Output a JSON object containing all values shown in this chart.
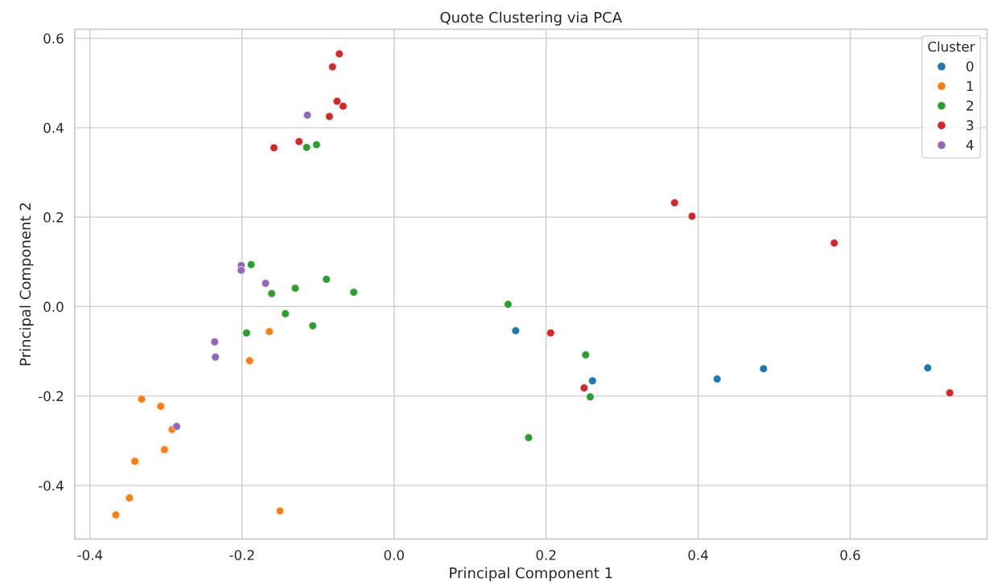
{
  "chart_data": {
    "type": "scatter",
    "title": "Quote Clustering via PCA",
    "xlabel": "Principal Component 1",
    "ylabel": "Principal Component 2",
    "legend_title": "Cluster",
    "legend": "top right",
    "grid": true,
    "marker": "circle",
    "xlim": [
      -0.42,
      0.78
    ],
    "ylim": [
      -0.52,
      0.62
    ],
    "xticks": [
      -0.4,
      -0.2,
      {
        "value": 0,
        "label": "0.0"
      },
      0.2,
      0.4,
      0.6
    ],
    "yticks": [
      -0.4,
      -0.2,
      {
        "value": 0,
        "label": "0.0"
      },
      0.2,
      0.4,
      0.6
    ],
    "series": [
      {
        "name": "0",
        "color": "#1f77b4",
        "x": [
          0.16,
          0.261,
          0.425,
          0.486,
          0.702
        ],
        "values": [
          -0.054,
          -0.166,
          -0.162,
          -0.139,
          -0.137
        ]
      },
      {
        "name": "1",
        "color": "#ff7f0e",
        "x": [
          -0.164,
          -0.19,
          -0.332,
          -0.307,
          -0.292,
          -0.302,
          -0.341,
          -0.348,
          -0.366,
          -0.15
        ],
        "values": [
          -0.056,
          -0.121,
          -0.207,
          -0.223,
          -0.275,
          -0.32,
          -0.346,
          -0.428,
          -0.466,
          -0.457
        ]
      },
      {
        "name": "2",
        "color": "#2ca02c",
        "x": [
          -0.188,
          -0.161,
          -0.13,
          -0.089,
          -0.053,
          -0.143,
          -0.107,
          -0.194,
          -0.115,
          -0.102,
          0.15,
          0.252,
          0.258,
          0.177
        ],
        "values": [
          0.094,
          0.029,
          0.041,
          0.061,
          0.032,
          -0.016,
          -0.043,
          -0.059,
          0.356,
          0.362,
          0.005,
          -0.108,
          -0.202,
          -0.293
        ]
      },
      {
        "name": "3",
        "color": "#d62728",
        "x": [
          -0.072,
          -0.081,
          -0.075,
          -0.067,
          -0.085,
          -0.125,
          -0.158,
          0.369,
          0.392,
          0.579,
          0.206,
          0.25,
          0.731
        ],
        "values": [
          0.565,
          0.536,
          0.459,
          0.448,
          0.425,
          0.369,
          0.355,
          0.232,
          0.202,
          0.142,
          -0.059,
          -0.182,
          -0.193
        ]
      },
      {
        "name": "4",
        "color": "#9467bd",
        "x": [
          -0.114,
          -0.201,
          -0.201,
          -0.169,
          -0.236,
          -0.235,
          -0.286
        ],
        "values": [
          0.428,
          0.092,
          0.081,
          0.052,
          -0.079,
          -0.113,
          -0.268
        ]
      }
    ]
  }
}
